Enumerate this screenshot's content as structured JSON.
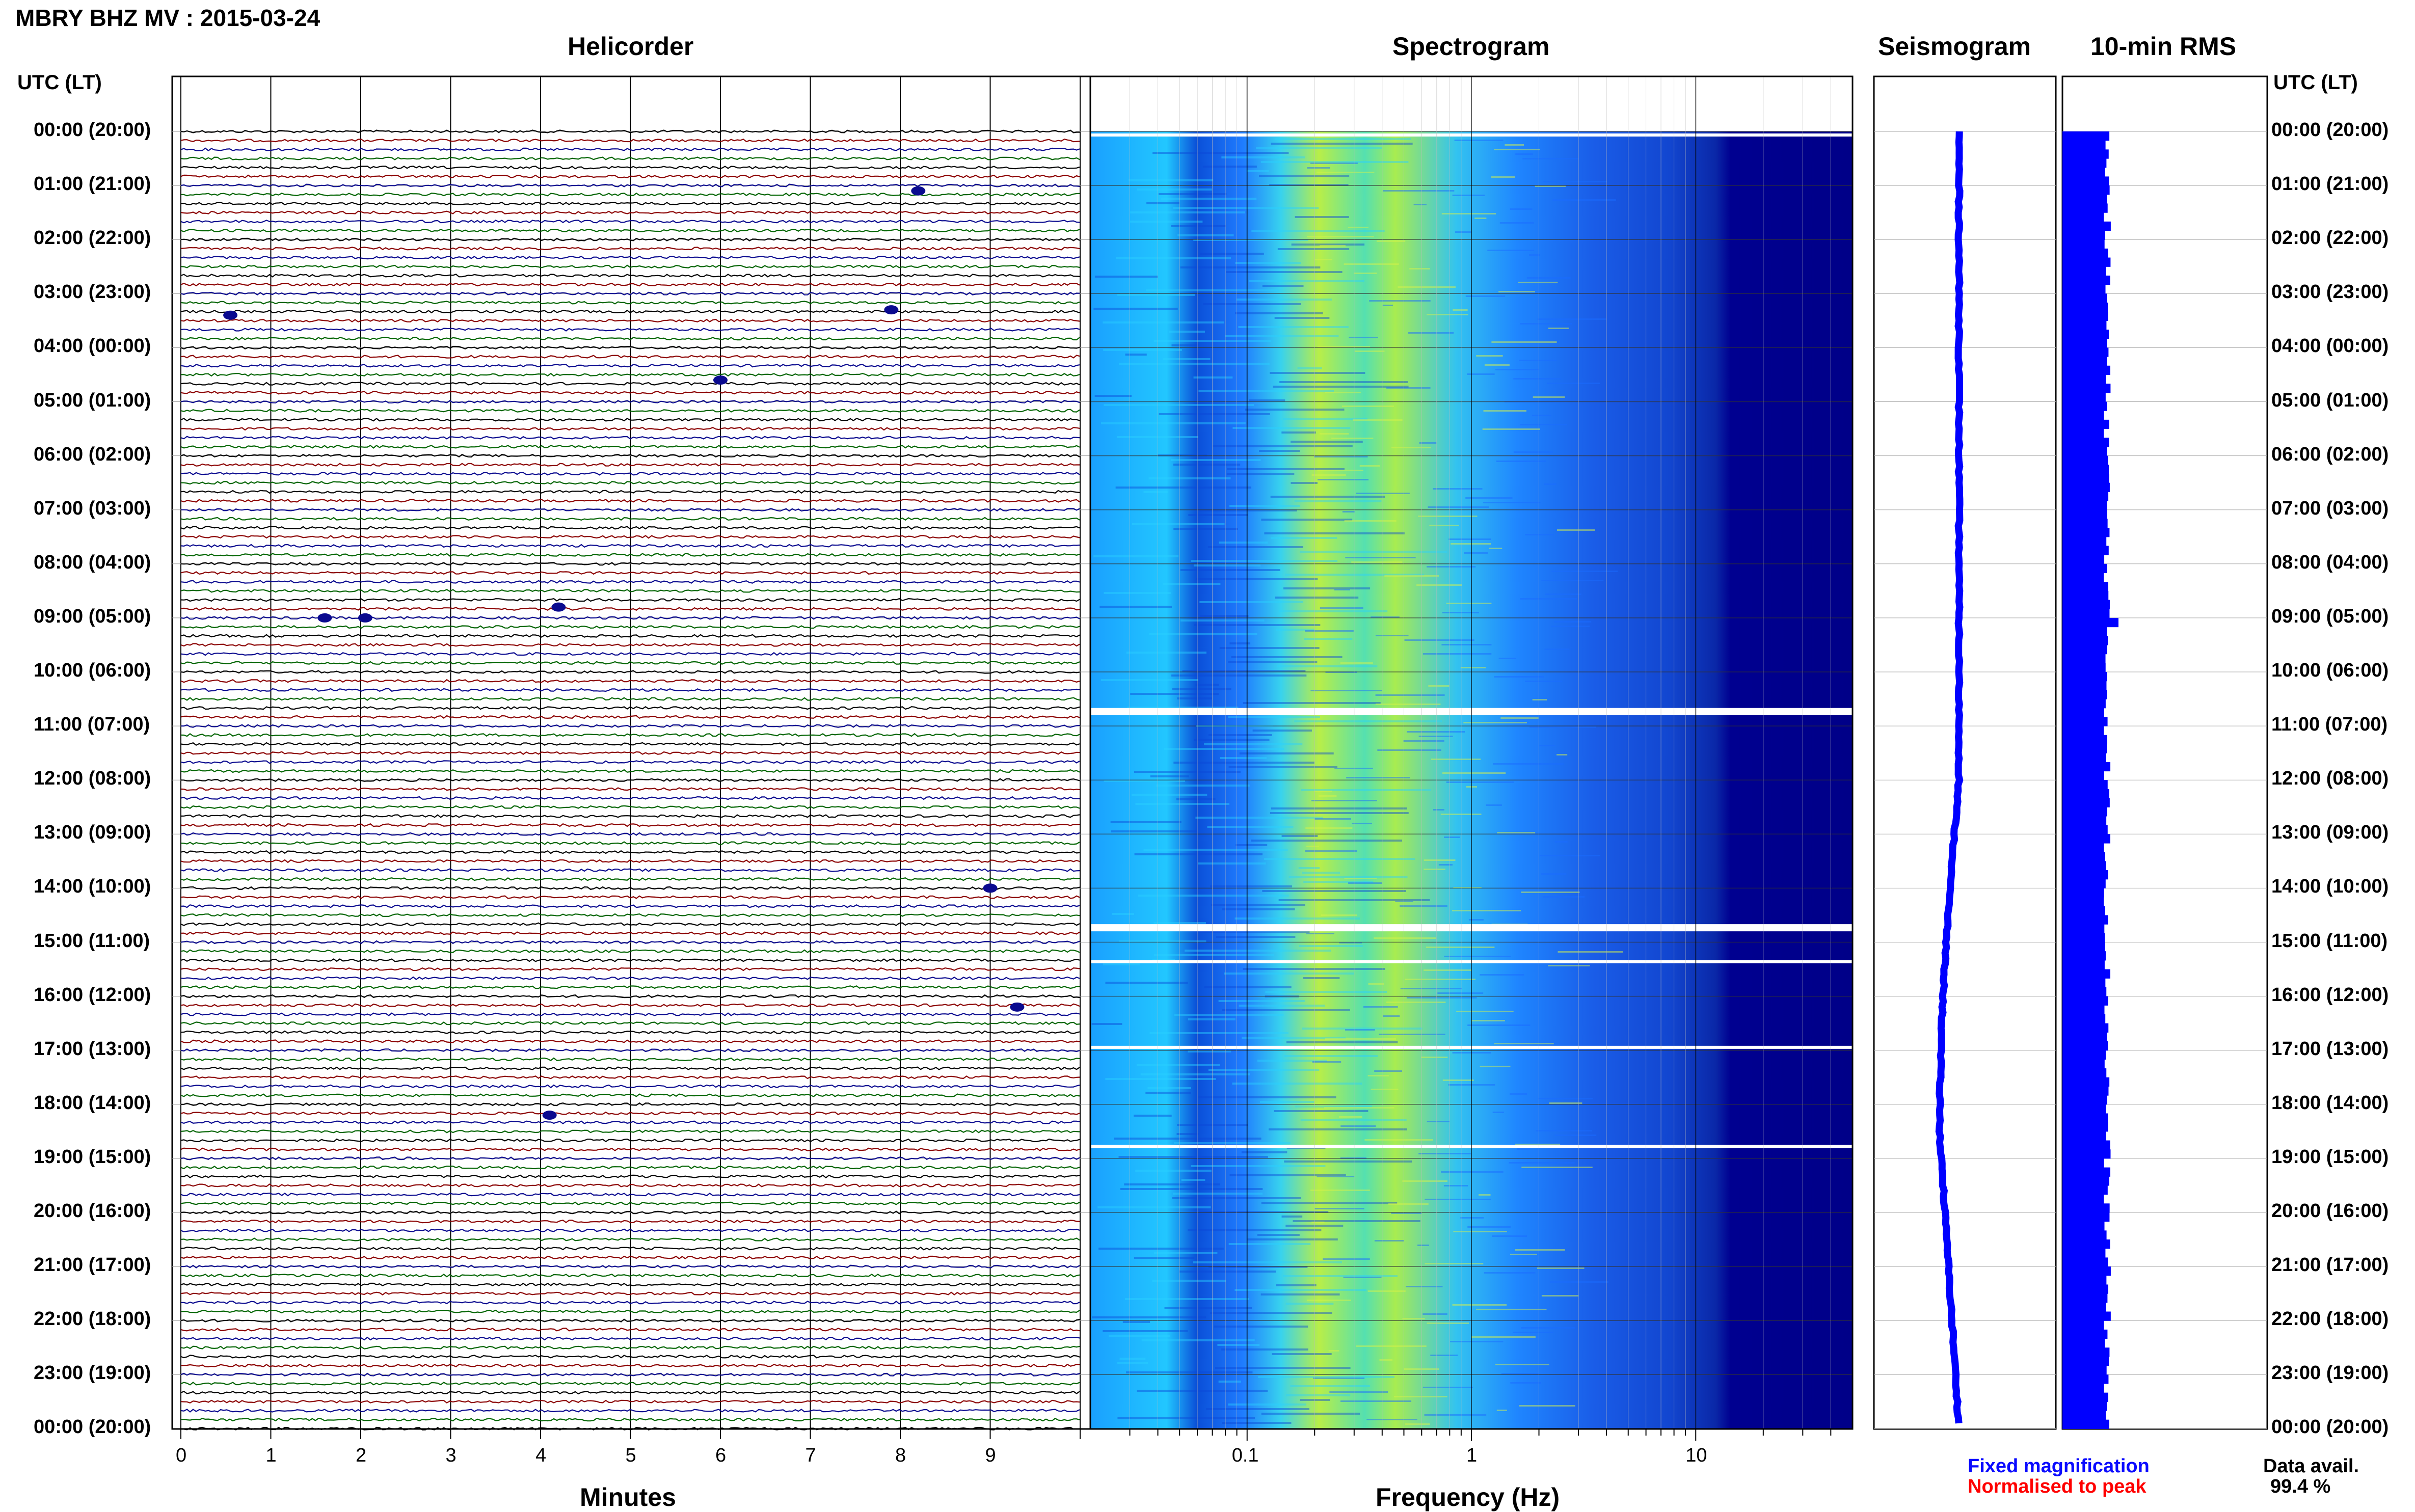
{
  "header": {
    "title": "MBRY BHZ MV : 2015-03-24"
  },
  "panels": {
    "helicorder": "Helicorder",
    "spectrogram": "Spectrogram",
    "seismogram": "Seismogram",
    "rms": "10-min RMS"
  },
  "axis": {
    "utc_header_left": "UTC (LT)",
    "utc_header_right": "UTC (LT)",
    "minutes_label": "Minutes",
    "minutes_ticks": [
      "0",
      "1",
      "2",
      "3",
      "4",
      "5",
      "6",
      "7",
      "8",
      "9"
    ],
    "frequency_label": "Frequency (Hz)",
    "frequency_ticks": [
      "0.1",
      "1",
      "10"
    ]
  },
  "time_labels": [
    "00:00 (20:00)",
    "01:00 (21:00)",
    "02:00 (22:00)",
    "03:00 (23:00)",
    "04:00 (00:00)",
    "05:00 (01:00)",
    "06:00 (02:00)",
    "07:00 (03:00)",
    "08:00 (04:00)",
    "09:00 (05:00)",
    "10:00 (06:00)",
    "11:00 (07:00)",
    "12:00 (08:00)",
    "13:00 (09:00)",
    "14:00 (10:00)",
    "15:00 (11:00)",
    "16:00 (12:00)",
    "17:00 (13:00)",
    "18:00 (14:00)",
    "19:00 (15:00)",
    "20:00 (16:00)",
    "21:00 (17:00)",
    "22:00 (18:00)",
    "23:00 (19:00)",
    "00:00 (20:00)"
  ],
  "legend": {
    "fixed": "Fixed magnification",
    "normalised": "Normalised to peak",
    "data_avail_label": "Data avail.",
    "data_avail_value": "99.4 %"
  },
  "colors": {
    "trace_cycle": [
      "#000000",
      "#8b0000",
      "#0a0a8f",
      "#006400"
    ],
    "spectro_dark": "#000090",
    "spectro_mid": "#1e6bff",
    "spectro_cyan": "#22c7ff",
    "spectro_yellow": "#c8f040",
    "seismogram": "#0000ff",
    "rms": "#0000ff"
  },
  "chart_data": {
    "type": "heatmap",
    "helicorder": {
      "x_unit": "minutes",
      "xlim": [
        0,
        10
      ],
      "row_span_minutes": 10,
      "rows": 144,
      "trace_color_cycle": [
        "black",
        "dark red",
        "blue",
        "green"
      ]
    },
    "spectrogram": {
      "x_unit": "Hz",
      "x_scale": "log",
      "xlim": [
        0.02,
        50
      ],
      "data_gaps_utc": [
        "10:40",
        "14:40",
        "15:20",
        "16:50",
        "18:40"
      ]
    },
    "rms": {
      "interval_minutes": 10
    },
    "data_availability_percent": 99.4
  }
}
